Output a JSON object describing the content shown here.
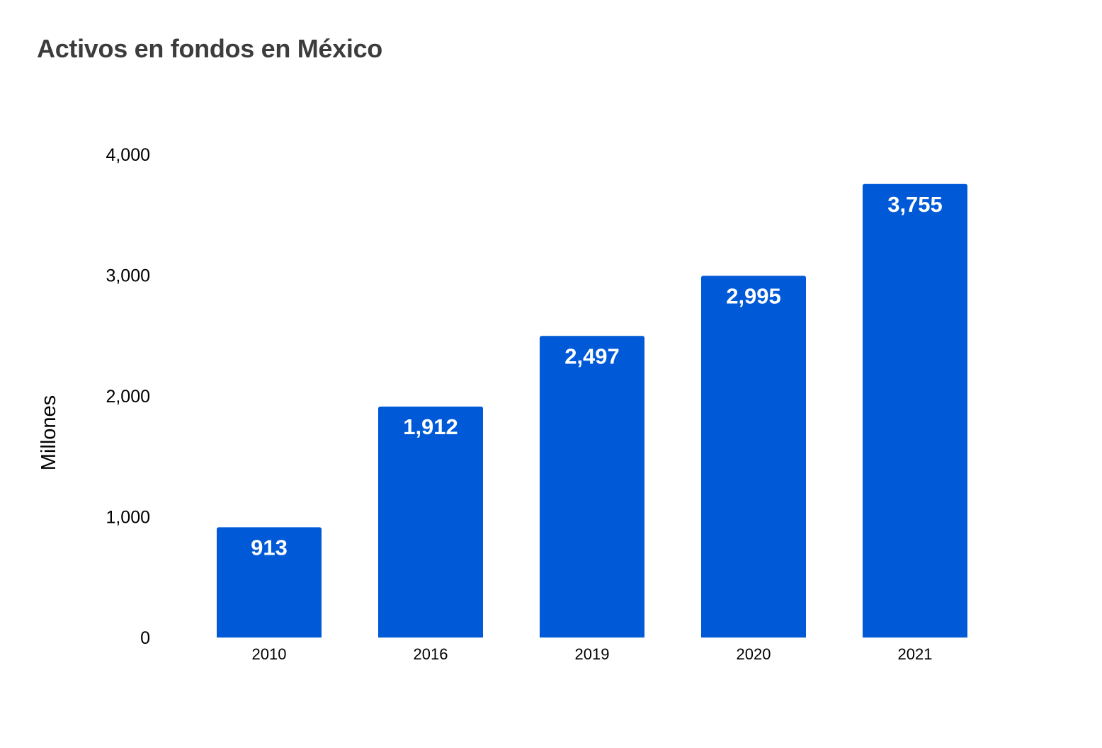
{
  "chart_data": {
    "type": "bar",
    "title": "Activos en fondos en México",
    "xlabel": "",
    "ylabel": "Millones",
    "categories": [
      "2010",
      "2016",
      "2019",
      "2020",
      "2021"
    ],
    "values": [
      913,
      1912,
      2497,
      2995,
      3755
    ],
    "value_labels": [
      "913",
      "1,912",
      "2,497",
      "2,995",
      "3,755"
    ],
    "ylim": [
      0,
      4000
    ],
    "y_ticks": [
      0,
      1000,
      2000,
      3000,
      4000
    ],
    "y_tick_labels": [
      "0",
      "1,000",
      "2,000",
      "3,000",
      "4,000"
    ],
    "grid": false,
    "legend": "none",
    "bar_color": "#0059d6",
    "label_color": "#ffffff"
  }
}
